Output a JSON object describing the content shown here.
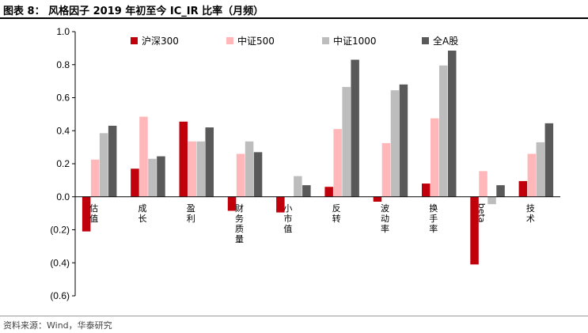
{
  "header": {
    "title": "图表 8：  风格因子 2019 年初至今 IC_IR 比率（月频）"
  },
  "footer": {
    "source": "资料来源：Wind，华泰研究"
  },
  "colors": {
    "hs300": "#C0000B",
    "zz500": "#FFB7B9",
    "zz1000": "#BDBDBD",
    "all": "#595959"
  },
  "chart_data": {
    "type": "bar",
    "title": "",
    "xlabel": "",
    "ylabel": "",
    "ylim": [
      -0.6,
      1.0
    ],
    "yticks": [
      -0.6,
      -0.4,
      -0.2,
      0.0,
      0.2,
      0.4,
      0.6,
      0.8,
      1.0
    ],
    "ytick_labels": [
      "(0.6)",
      "(0.4)",
      "(0.2)",
      "0.0",
      "0.2",
      "0.4",
      "0.6",
      "0.8",
      "1.0"
    ],
    "grid": false,
    "legend_position": "top",
    "categories": [
      "估值",
      "成长",
      "盈利",
      "财务质量",
      "小市值",
      "反转",
      "波动率",
      "换手率",
      "beta",
      "技术"
    ],
    "series": [
      {
        "name": "沪深300",
        "color": "#C0000B",
        "values": [
          -0.21,
          0.17,
          0.455,
          -0.085,
          -0.095,
          0.06,
          -0.03,
          0.08,
          -0.41,
          0.095
        ]
      },
      {
        "name": "中证500",
        "color": "#FFB7B9",
        "values": [
          0.225,
          0.485,
          0.335,
          0.26,
          0.0,
          0.41,
          0.325,
          0.475,
          0.155,
          0.26
        ]
      },
      {
        "name": "中证1000",
        "color": "#BDBDBD",
        "values": [
          0.385,
          0.23,
          0.335,
          0.335,
          0.125,
          0.665,
          0.645,
          0.795,
          -0.045,
          0.33
        ]
      },
      {
        "name": "全A股",
        "color": "#595959",
        "values": [
          0.43,
          0.245,
          0.42,
          0.27,
          0.07,
          0.83,
          0.68,
          0.885,
          0.07,
          0.445
        ]
      }
    ]
  }
}
